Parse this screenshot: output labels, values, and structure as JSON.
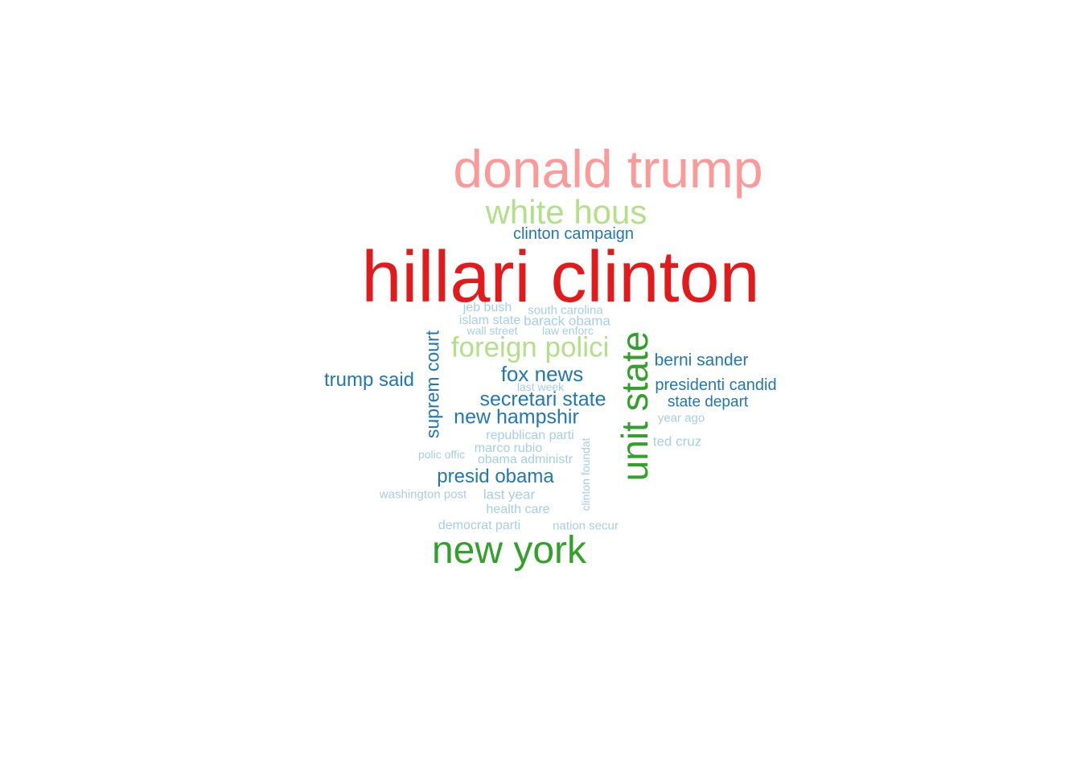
{
  "colors": {
    "red": "#e31a1c",
    "salmon": "#fb9a99",
    "green": "#33a02c",
    "light_green": "#b2df8a",
    "dark_blue": "#1f78b4",
    "light_blue": "#a6cee3"
  },
  "words": [
    {
      "id": "hillari-clinton",
      "text": "hillari clinton",
      "color": "red"
    },
    {
      "id": "donald-trump",
      "text": "donald trump",
      "color": "salmon"
    },
    {
      "id": "new-york",
      "text": "new york",
      "color": "green"
    },
    {
      "id": "unit-state",
      "text": "unit state",
      "color": "green"
    },
    {
      "id": "white-hous",
      "text": "white hous",
      "color": "light_green"
    },
    {
      "id": "foreign-polici",
      "text": "foreign polici",
      "color": "light_green"
    },
    {
      "id": "clinton-campaign",
      "text": "clinton campaign",
      "color": "dark_blue"
    },
    {
      "id": "suprem-court",
      "text": "suprem court",
      "color": "dark_blue"
    },
    {
      "id": "trump-said",
      "text": "trump said",
      "color": "dark_blue"
    },
    {
      "id": "fox-news",
      "text": "fox news",
      "color": "dark_blue"
    },
    {
      "id": "secretari-state",
      "text": "secretari state",
      "color": "dark_blue"
    },
    {
      "id": "new-hampshir",
      "text": "new hampshir",
      "color": "dark_blue"
    },
    {
      "id": "presid-obama",
      "text": "presid obama",
      "color": "dark_blue"
    },
    {
      "id": "berni-sander",
      "text": "berni sander",
      "color": "dark_blue"
    },
    {
      "id": "presidenti-candid",
      "text": "presidenti candid",
      "color": "dark_blue"
    },
    {
      "id": "state-depart",
      "text": "state depart",
      "color": "dark_blue"
    },
    {
      "id": "jeb-bush",
      "text": "jeb bush",
      "color": "light_blue"
    },
    {
      "id": "south-carolina",
      "text": "south carolina",
      "color": "light_blue"
    },
    {
      "id": "islam-state",
      "text": "islam state",
      "color": "light_blue"
    },
    {
      "id": "barack-obama",
      "text": "barack obama",
      "color": "light_blue"
    },
    {
      "id": "wall-street",
      "text": "wall street",
      "color": "light_blue"
    },
    {
      "id": "law-enforc",
      "text": "law enforc",
      "color": "light_blue"
    },
    {
      "id": "last-week",
      "text": "last week",
      "color": "light_blue"
    },
    {
      "id": "year-ago",
      "text": "year ago",
      "color": "light_blue"
    },
    {
      "id": "republican-parti",
      "text": "republican parti",
      "color": "light_blue"
    },
    {
      "id": "ted-cruz",
      "text": "ted cruz",
      "color": "light_blue"
    },
    {
      "id": "marco-rubio",
      "text": "marco rubio",
      "color": "light_blue"
    },
    {
      "id": "polic-offic",
      "text": "polic offic",
      "color": "light_blue"
    },
    {
      "id": "obama-administr",
      "text": "obama administr",
      "color": "light_blue"
    },
    {
      "id": "clinton-foundat",
      "text": "clinton foundat",
      "color": "light_blue"
    },
    {
      "id": "washington-post",
      "text": "washington post",
      "color": "light_blue"
    },
    {
      "id": "last-year",
      "text": "last year",
      "color": "light_blue"
    },
    {
      "id": "health-care",
      "text": "health care",
      "color": "light_blue"
    },
    {
      "id": "democrat-parti",
      "text": "democrat parti",
      "color": "light_blue"
    },
    {
      "id": "nation-secur",
      "text": "nation secur",
      "color": "light_blue"
    }
  ]
}
